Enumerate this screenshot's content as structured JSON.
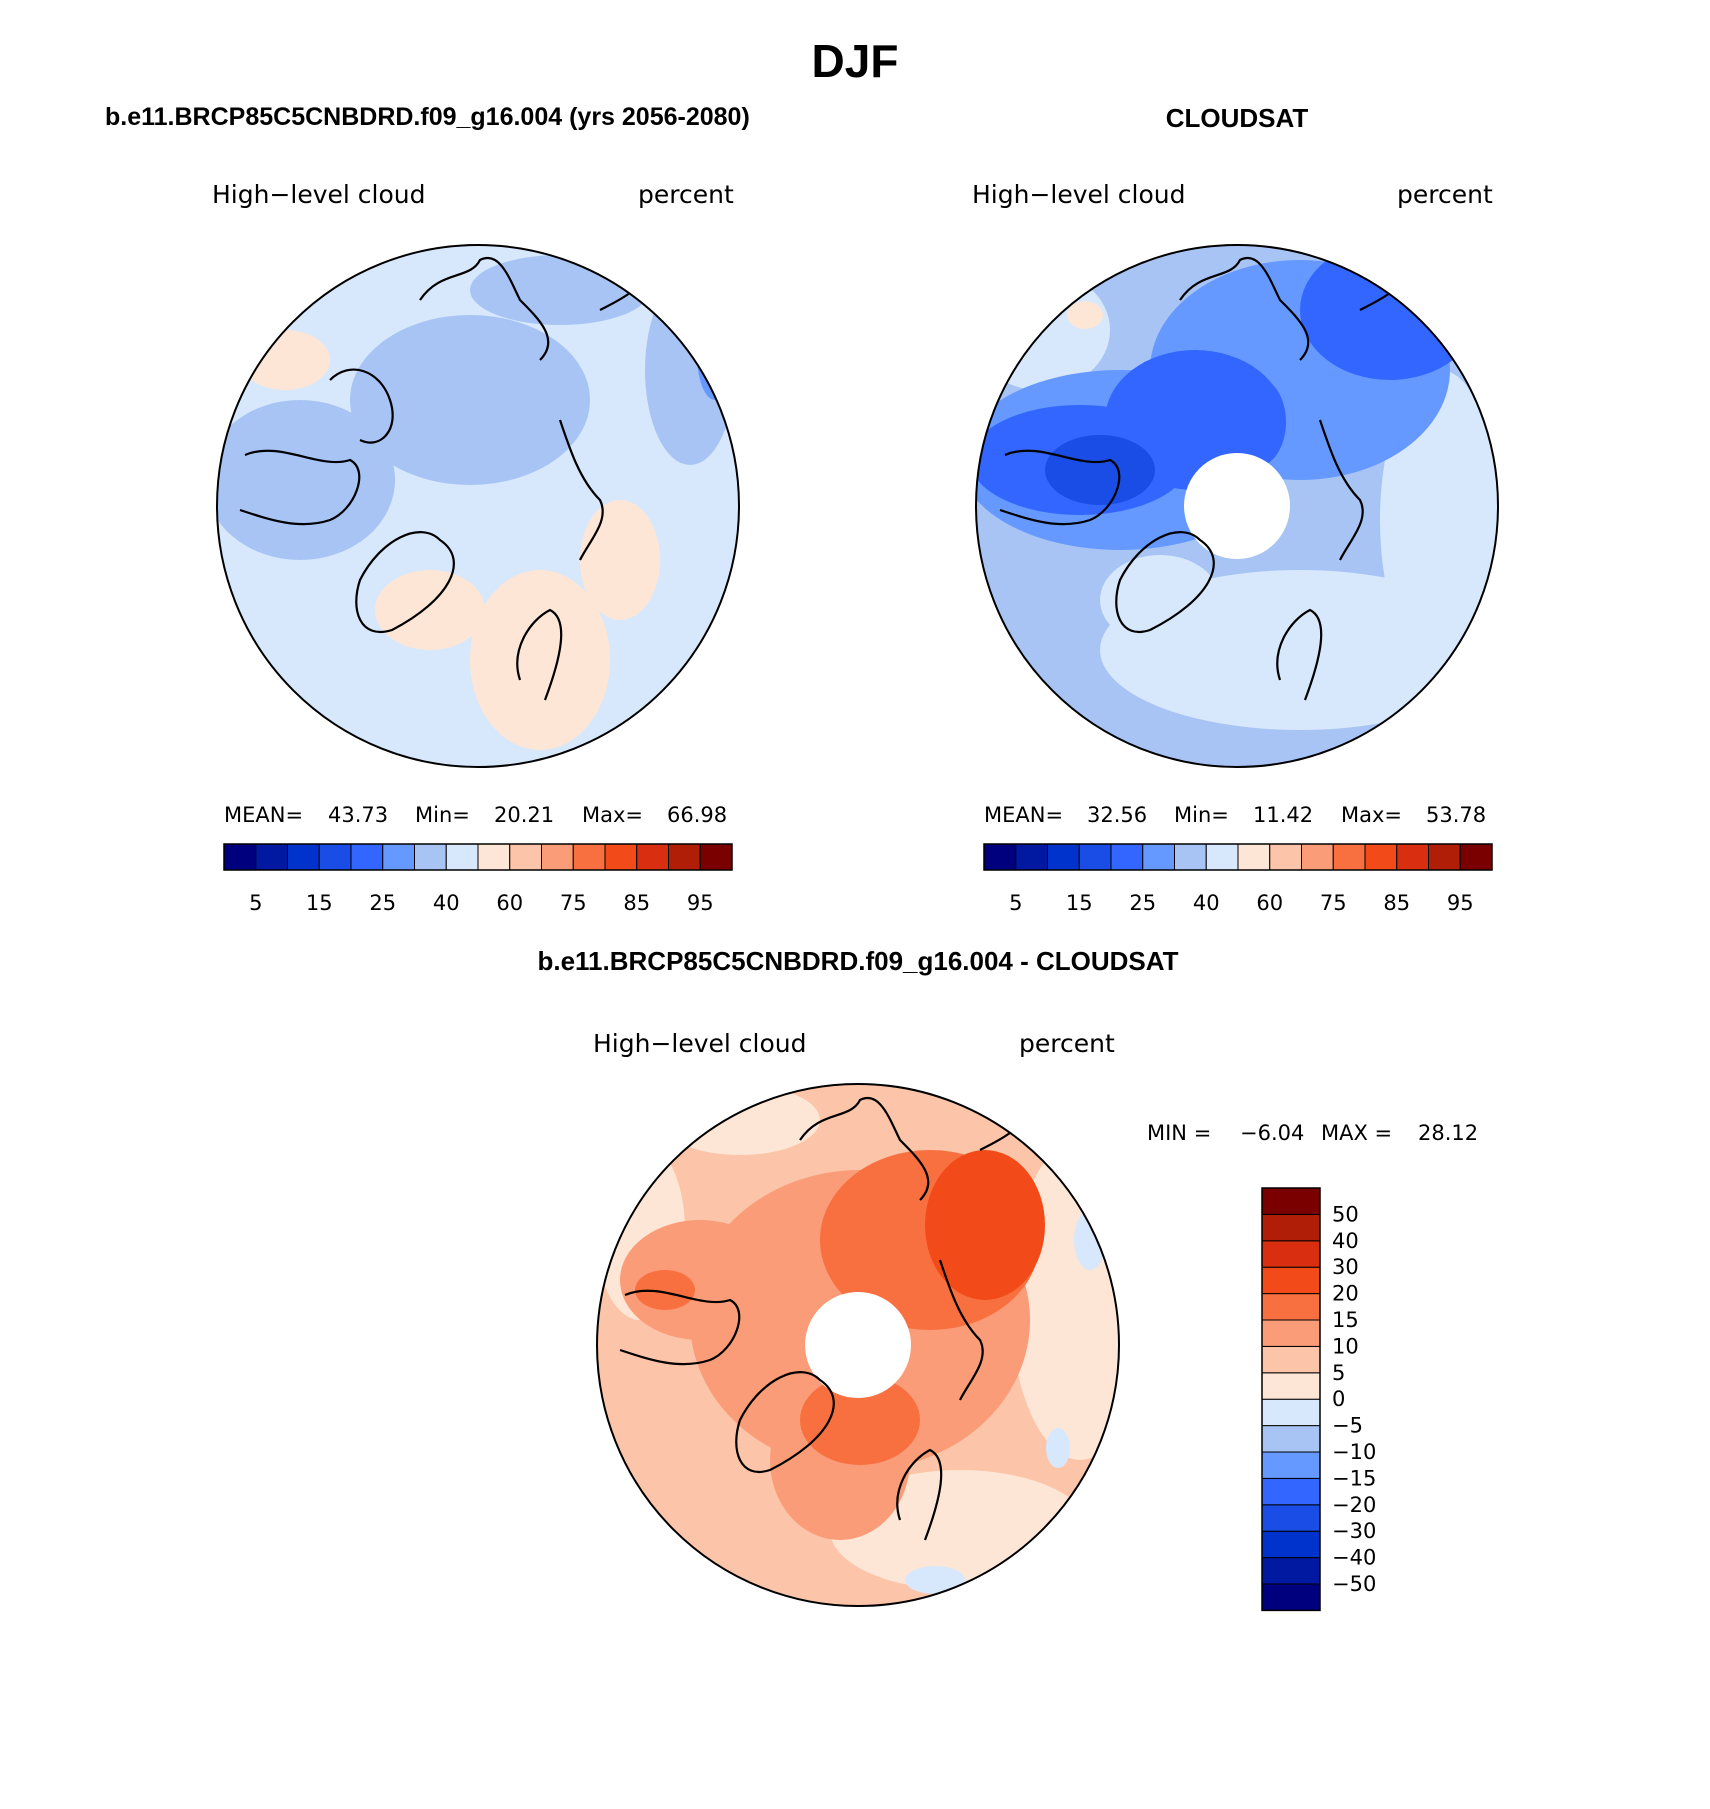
{
  "figure": {
    "title": "DJF"
  },
  "chart_data": [
    {
      "type": "heatmap",
      "title": "b.e11.BRCP85C5CNBDRD.f09_g16.004 (yrs 2056-2080)",
      "field_label": "High−level cloud",
      "units_label": "percent",
      "projection": "north polar stereographic",
      "stats": {
        "mean_label": "MEAN=",
        "mean": "43.73",
        "min_label": "Min=",
        "min": "20.21",
        "max_label": "Max=",
        "max": "66.98"
      },
      "colorbar": {
        "orientation": "horizontal",
        "colors": [
          "#00007f",
          "#0019a0",
          "#0033cc",
          "#1a4de6",
          "#3366ff",
          "#6699ff",
          "#a8c4f5",
          "#d7e8fc",
          "#fde6d6",
          "#fcc4a8",
          "#fa9c77",
          "#f97040",
          "#f24a18",
          "#d92f10",
          "#b01e08",
          "#7a0000"
        ],
        "tick_labels": [
          "5",
          "15",
          "25",
          "40",
          "60",
          "75",
          "85",
          "95"
        ]
      }
    },
    {
      "type": "heatmap",
      "title": "CLOUDSAT",
      "field_label": "High−level cloud",
      "units_label": "percent",
      "projection": "north polar stereographic",
      "stats": {
        "mean_label": "MEAN=",
        "mean": "32.56",
        "min_label": "Min=",
        "min": "11.42",
        "max_label": "Max=",
        "max": "53.78"
      },
      "colorbar": {
        "orientation": "horizontal",
        "colors": [
          "#00007f",
          "#0019a0",
          "#0033cc",
          "#1a4de6",
          "#3366ff",
          "#6699ff",
          "#a8c4f5",
          "#d7e8fc",
          "#fde6d6",
          "#fcc4a8",
          "#fa9c77",
          "#f97040",
          "#f24a18",
          "#d92f10",
          "#b01e08",
          "#7a0000"
        ],
        "tick_labels": [
          "5",
          "15",
          "25",
          "40",
          "60",
          "75",
          "85",
          "95"
        ]
      }
    },
    {
      "type": "heatmap",
      "title": "b.e11.BRCP85C5CNBDRD.f09_g16.004 - CLOUDSAT",
      "field_label": "High−level cloud",
      "units_label": "percent",
      "projection": "north polar stereographic",
      "stats": {
        "min_label": "MIN =",
        "min": "−6.04",
        "max_label": "MAX =",
        "max": "28.12"
      },
      "colorbar": {
        "orientation": "vertical",
        "colors_bottom_to_top": [
          "#00007f",
          "#0019a0",
          "#0033cc",
          "#1a4de6",
          "#3366ff",
          "#6699ff",
          "#a8c4f5",
          "#d7e8fc",
          "#fde6d6",
          "#fcc4a8",
          "#fa9c77",
          "#f97040",
          "#f24a18",
          "#d92f10",
          "#b01e08",
          "#7a0000"
        ],
        "tick_labels_top_to_bottom": [
          "50",
          "40",
          "30",
          "20",
          "15",
          "10",
          "5",
          "0",
          "−5",
          "−10",
          "−15",
          "−20",
          "−30",
          "−40",
          "−50"
        ]
      }
    }
  ]
}
